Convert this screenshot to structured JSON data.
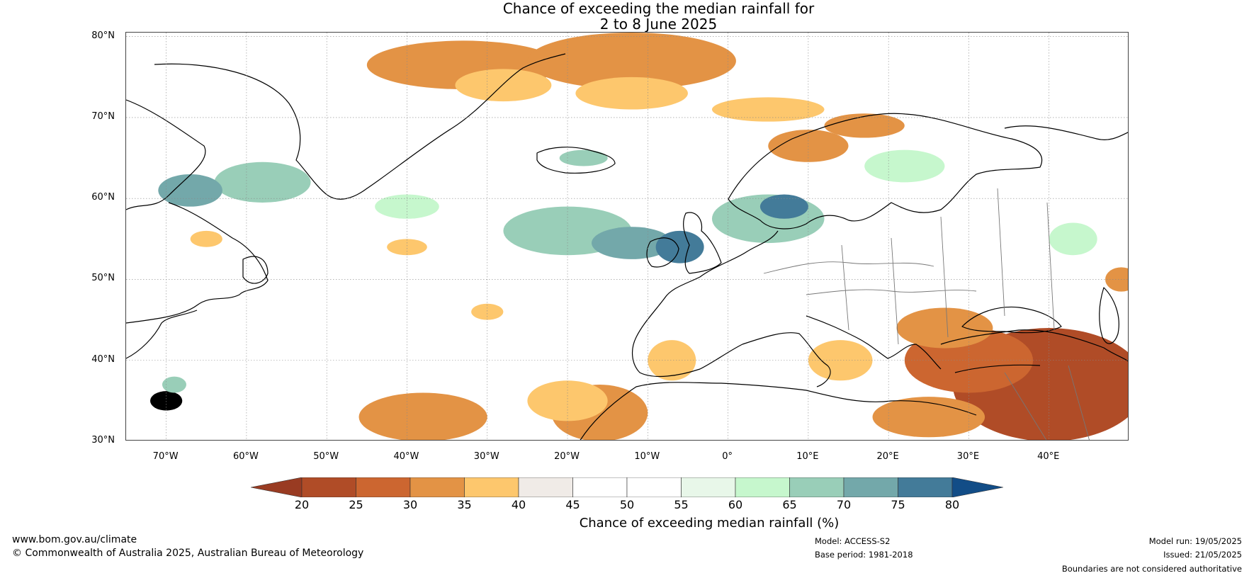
{
  "title": {
    "line1": "Chance of exceeding the median rainfall for",
    "line2": "2 to 8 June 2025"
  },
  "map": {
    "lon_range": [
      -75,
      50
    ],
    "lat_range": [
      30,
      80.5
    ],
    "lat_ticks": [
      {
        "value": 80,
        "label": "80°N"
      },
      {
        "value": 70,
        "label": "70°N"
      },
      {
        "value": 60,
        "label": "60°N"
      },
      {
        "value": 50,
        "label": "50°N"
      },
      {
        "value": 40,
        "label": "40°N"
      },
      {
        "value": 30,
        "label": "30°N"
      }
    ],
    "lon_ticks": [
      {
        "value": -70,
        "label": "70°W"
      },
      {
        "value": -60,
        "label": "60°W"
      },
      {
        "value": -50,
        "label": "50°W"
      },
      {
        "value": -40,
        "label": "40°W"
      },
      {
        "value": -30,
        "label": "30°W"
      },
      {
        "value": -20,
        "label": "20°W"
      },
      {
        "value": -10,
        "label": "10°W"
      },
      {
        "value": 0,
        "label": "0°"
      },
      {
        "value": 10,
        "label": "10°E"
      },
      {
        "value": 20,
        "label": "20°E"
      },
      {
        "value": 30,
        "label": "30°E"
      },
      {
        "value": 40,
        "label": "40°E"
      }
    ],
    "regions": [
      {
        "lon": -33,
        "lat": 76.5,
        "rlon": 12,
        "rlat": 3,
        "class": 30
      },
      {
        "lon": -12,
        "lat": 77,
        "rlon": 13,
        "rlat": 3.5,
        "class": 30
      },
      {
        "lon": -28,
        "lat": 74,
        "rlon": 6,
        "rlat": 2,
        "class": 35
      },
      {
        "lon": -12,
        "lat": 73,
        "rlon": 7,
        "rlat": 2,
        "class": 35
      },
      {
        "lon": 5,
        "lat": 71,
        "rlon": 7,
        "rlat": 1.5,
        "class": 35
      },
      {
        "lon": 10,
        "lat": 66.5,
        "rlon": 5,
        "rlat": 2,
        "class": 30
      },
      {
        "lon": 17,
        "lat": 69,
        "rlon": 5,
        "rlat": 1.5,
        "class": 30
      },
      {
        "lon": -58,
        "lat": 62,
        "rlon": 6,
        "rlat": 2.5,
        "class": 65
      },
      {
        "lon": -67,
        "lat": 61,
        "rlon": 4,
        "rlat": 2,
        "class": 70
      },
      {
        "lon": -20,
        "lat": 56,
        "rlon": 8,
        "rlat": 3,
        "class": 65
      },
      {
        "lon": -12,
        "lat": 54.5,
        "rlon": 5,
        "rlat": 2,
        "class": 70
      },
      {
        "lon": -6,
        "lat": 54,
        "rlon": 3,
        "rlat": 2,
        "class": 75
      },
      {
        "lon": 5,
        "lat": 57.5,
        "rlon": 7,
        "rlat": 3,
        "class": 65
      },
      {
        "lon": 7,
        "lat": 59,
        "rlon": 3,
        "rlat": 1.5,
        "class": 75
      },
      {
        "lon": -40,
        "lat": 59,
        "rlon": 4,
        "rlat": 1.5,
        "class": 60
      },
      {
        "lon": -70,
        "lat": 35,
        "rlon": 2,
        "rlat": 1.2,
        "class": 80
      },
      {
        "lon": -69,
        "lat": 37,
        "rlon": 1.5,
        "rlat": 1,
        "class": 65
      },
      {
        "lon": -38,
        "lat": 33,
        "rlon": 8,
        "rlat": 3,
        "class": 30
      },
      {
        "lon": -16,
        "lat": 33.5,
        "rlon": 6,
        "rlat": 3.5,
        "class": 30
      },
      {
        "lon": -20,
        "lat": 35,
        "rlon": 5,
        "rlat": 2.5,
        "class": 35
      },
      {
        "lon": 40,
        "lat": 37,
        "rlon": 12,
        "rlat": 7,
        "class": 20
      },
      {
        "lon": 30,
        "lat": 40,
        "rlon": 8,
        "rlat": 4,
        "class": 25
      },
      {
        "lon": 27,
        "lat": 44,
        "rlon": 6,
        "rlat": 2.5,
        "class": 30
      },
      {
        "lon": 25,
        "lat": 33,
        "rlon": 7,
        "rlat": 2.5,
        "class": 30
      },
      {
        "lon": 14,
        "lat": 40,
        "rlon": 4,
        "rlat": 2.5,
        "class": 35
      },
      {
        "lon": -7,
        "lat": 40,
        "rlon": 3,
        "rlat": 2.5,
        "class": 35
      },
      {
        "lon": 49,
        "lat": 50,
        "rlon": 2,
        "rlat": 1.5,
        "class": 30
      },
      {
        "lon": -49,
        "lat": 74,
        "rlon": 4,
        "rlat": 2,
        "class": 45
      },
      {
        "lon": -38,
        "lat": 50,
        "rlon": 6,
        "rlat": 2,
        "class": 45
      },
      {
        "lon": -60,
        "lat": 45,
        "rlon": 5,
        "rlat": 2,
        "class": 45
      },
      {
        "lon": 34,
        "lat": 70,
        "rlon": 6,
        "rlat": 2,
        "class": 45
      },
      {
        "lon": -40,
        "lat": 54,
        "rlon": 2.5,
        "rlat": 1,
        "class": 35
      },
      {
        "lon": -65,
        "lat": 55,
        "rlon": 2,
        "rlat": 1,
        "class": 35
      },
      {
        "lon": -30,
        "lat": 46,
        "rlon": 2,
        "rlat": 1,
        "class": 35
      },
      {
        "lon": -18,
        "lat": 65,
        "rlon": 3,
        "rlat": 1,
        "class": 65
      },
      {
        "lon": 22,
        "lat": 64,
        "rlon": 5,
        "rlat": 2,
        "class": 60
      },
      {
        "lon": 43,
        "lat": 55,
        "rlon": 3,
        "rlat": 2,
        "class": 60
      }
    ]
  },
  "colorbar": {
    "label": "Chance of exceeding median rainfall (%)",
    "ticks": [
      "20",
      "25",
      "30",
      "35",
      "40",
      "45",
      "50",
      "55",
      "60",
      "65",
      "70",
      "75",
      "80"
    ],
    "colors": {
      "below_20": "#993b22",
      "20": "#b04c27",
      "25": "#cc6630",
      "30": "#e39345",
      "35": "#fdc76d",
      "40": "#f0ebe7",
      "45": "#ffffff",
      "50": "#ffffff",
      "55": "#e8f7e9",
      "60": "#c6f7cd",
      "65": "#99ceb8",
      "70": "#73a8aa",
      "75": "#437b99",
      "above_80": "#124d87"
    }
  },
  "footer": {
    "url": "www.bom.gov.au/climate",
    "copyright": "© Commonwealth of Australia 2025, Australian Bureau of Meteorology",
    "model": "Model: ACCESS-S2",
    "base_period": "Base period: 1981-2018",
    "model_run": "Model run: 19/05/2025",
    "issued": "Issued: 21/05/2025",
    "boundaries": "Boundaries are not considered authoritative"
  }
}
